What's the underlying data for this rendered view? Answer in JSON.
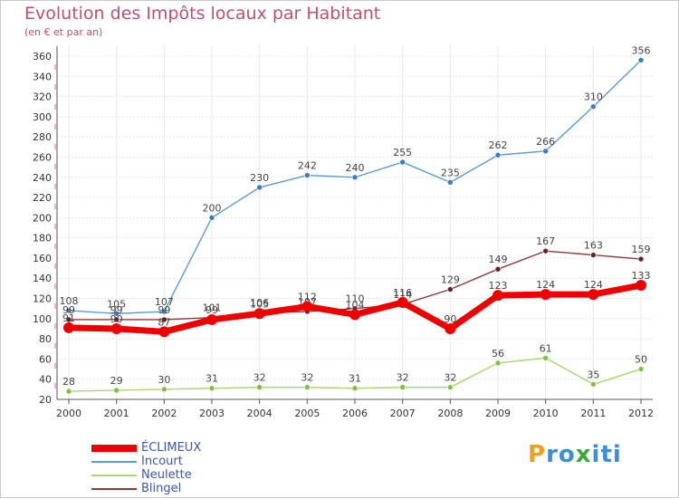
{
  "chart_data": {
    "type": "line",
    "title": "Evolution des Impôts locaux par Habitant",
    "subtitle": "(en € et par an)",
    "xlabel": "",
    "ylabel": "",
    "ylim": [
      20,
      360
    ],
    "yticks": [
      20,
      40,
      60,
      80,
      100,
      120,
      140,
      160,
      180,
      200,
      220,
      240,
      260,
      280,
      300,
      320,
      340,
      360
    ],
    "categories": [
      "2000",
      "2001",
      "2002",
      "2003",
      "2004",
      "2005",
      "2006",
      "2007",
      "2008",
      "2009",
      "2010",
      "2011",
      "2012"
    ],
    "series": [
      {
        "name": "Incourt",
        "color": "#5b9bd5",
        "point_color": "#3a7cc3",
        "values": [
          108,
          105,
          107,
          200,
          230,
          242,
          240,
          255,
          235,
          262,
          266,
          310,
          356
        ],
        "labels": [
          "108",
          "105",
          "107",
          "200",
          "230",
          "242",
          "240",
          "255",
          "235",
          "262",
          "266",
          "310",
          "356"
        ]
      },
      {
        "name": "Blingel",
        "color": "#8b3a3a",
        "point_color": "#6b1e1e",
        "values": [
          99,
          99,
          99,
          101,
          106,
          107,
          110,
          114,
          129,
          149,
          167,
          163,
          159
        ],
        "labels": [
          "99",
          "99",
          "99",
          "101",
          "106",
          "107",
          "110",
          "114",
          "129",
          "149",
          "167",
          "163",
          "159"
        ]
      },
      {
        "name": "Neulette",
        "color": "#a6d86e",
        "point_color": "#7ec23e",
        "values": [
          28,
          29,
          30,
          31,
          32,
          32,
          31,
          32,
          32,
          56,
          61,
          35,
          50
        ],
        "labels": [
          "28",
          "29",
          "30",
          "31",
          "32",
          "32",
          "31",
          "32",
          "32",
          "56",
          "61",
          "35",
          "50"
        ]
      },
      {
        "name": "ÉCLIMEUX",
        "color": "#ee0000",
        "point_color": "#ee0000",
        "values": [
          91,
          90,
          87,
          99,
          105,
          112,
          104,
          116,
          90,
          123,
          124,
          124,
          133
        ],
        "labels": [
          "91",
          "90",
          "87",
          "99",
          "105",
          "112",
          "104",
          "116",
          "90",
          "123",
          "124",
          "124",
          "133"
        ]
      }
    ],
    "legend": {
      "position": "bottom-left",
      "items": [
        {
          "name": "ÉCLIMEUX",
          "color": "#ee0000"
        },
        {
          "name": "Incourt",
          "color": "#5b9bd5"
        },
        {
          "name": "Neulette",
          "color": "#a6d86e"
        },
        {
          "name": "Blingel",
          "color": "#8b3a3a"
        }
      ]
    }
  },
  "logo": {
    "letters": [
      "P",
      "r",
      "o",
      "x",
      "i",
      "t",
      "i"
    ],
    "colors": [
      "#f0a020",
      "#3a8fd8",
      "#3a8fd8",
      "#3aaa3a",
      "#3a8fd8",
      "#3a8fd8",
      "#3a8fd8"
    ]
  }
}
